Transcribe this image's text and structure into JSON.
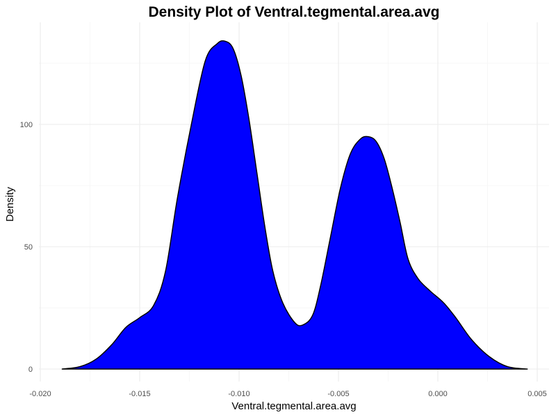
{
  "chart_data": {
    "type": "area",
    "title": "Density Plot of Ventral.tegmental.area.avg",
    "xlabel": "Ventral.tegmental.area.avg",
    "ylabel": "Density",
    "xlim": [
      -0.02,
      0.005
    ],
    "ylim": [
      0,
      135
    ],
    "x_ticks": [
      -0.02,
      -0.015,
      -0.01,
      -0.005,
      0.0,
      0.005
    ],
    "x_tick_labels": [
      "-0.020",
      "-0.015",
      "-0.010",
      "-0.005",
      "0.000",
      "0.005"
    ],
    "y_ticks": [
      0,
      50,
      100
    ],
    "y_tick_labels": [
      "0",
      "50",
      "100"
    ],
    "grid": true,
    "legend": "none",
    "fill_color": "#0000ff",
    "line_color": "#000000",
    "series": [
      {
        "x": [
          -0.0189,
          -0.018,
          -0.0172,
          -0.0164,
          -0.0157,
          -0.015,
          -0.0143,
          -0.0137,
          -0.0131,
          -0.0124,
          -0.0117,
          -0.0111,
          -0.0107,
          -0.0103,
          -0.0099,
          -0.0095,
          -0.0091,
          -0.0087,
          -0.0083,
          -0.0078,
          -0.0072,
          -0.0068,
          -0.0063,
          -0.0059,
          -0.0054,
          -0.0049,
          -0.0044,
          -0.0039,
          -0.0035,
          -0.0031,
          -0.0027,
          -0.0023,
          -0.0019,
          -0.0015,
          -0.001,
          -0.0004,
          0.0003,
          0.0009,
          0.0017,
          0.0026,
          0.0035,
          0.0045
        ],
        "y": [
          0,
          1,
          4,
          10,
          17,
          21,
          26,
          40,
          70,
          100,
          126,
          133,
          134,
          131,
          120,
          102,
          80,
          58,
          40,
          27,
          19,
          18,
          22,
          34,
          54,
          74,
          88,
          94,
          95,
          93,
          86,
          74,
          60,
          45,
          37,
          32,
          27,
          21,
          12,
          5,
          1,
          0
        ]
      }
    ]
  }
}
